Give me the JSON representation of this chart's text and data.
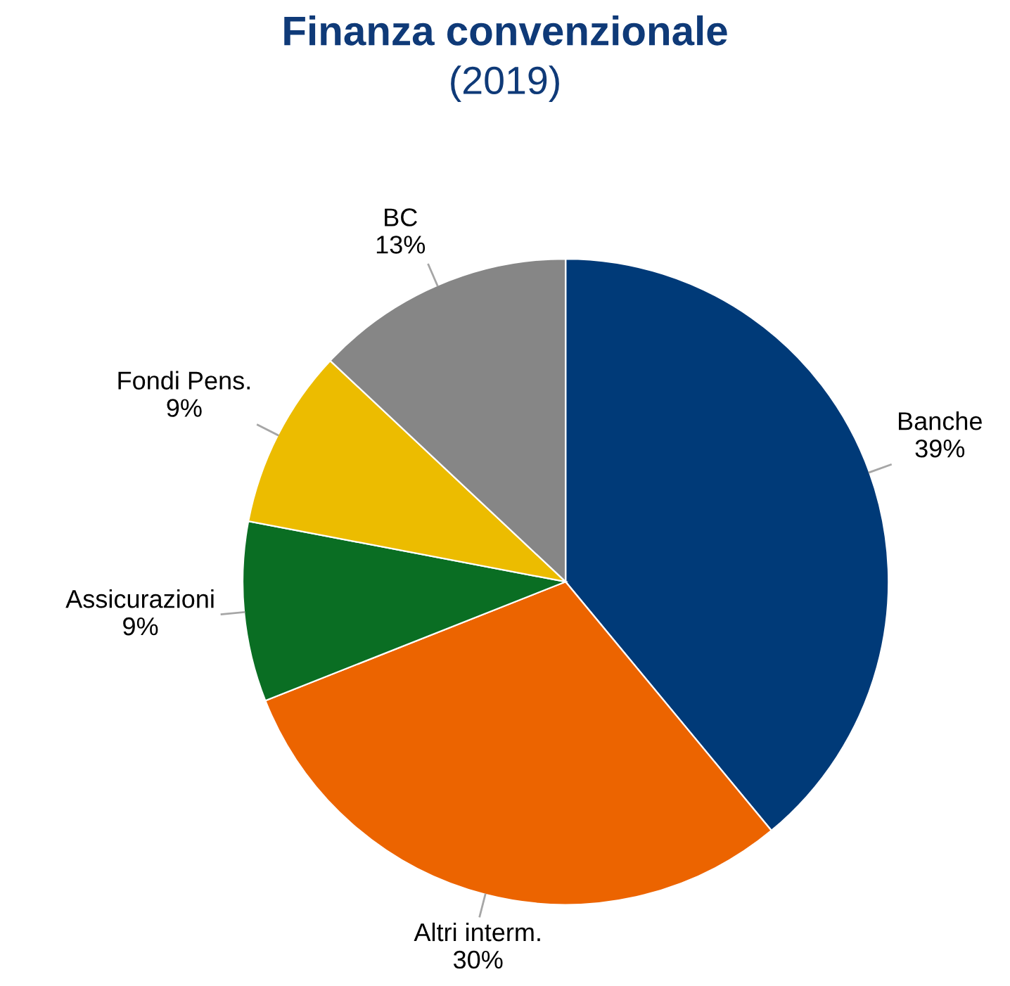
{
  "chart_data": {
    "type": "pie",
    "title": "Finanza convenzionale",
    "subtitle": "(2019)",
    "categories": [
      "Banche",
      "Altri interm.",
      "Assicurazioni",
      "Fondi Pens.",
      "BC"
    ],
    "values": [
      39,
      30,
      9,
      9,
      13
    ],
    "colors": [
      "#003a78",
      "#ec6400",
      "#0a6e23",
      "#ecbc00",
      "#868686"
    ],
    "value_labels": [
      "39%",
      "30%",
      "9%",
      "9%",
      "13%"
    ],
    "legend": false
  }
}
